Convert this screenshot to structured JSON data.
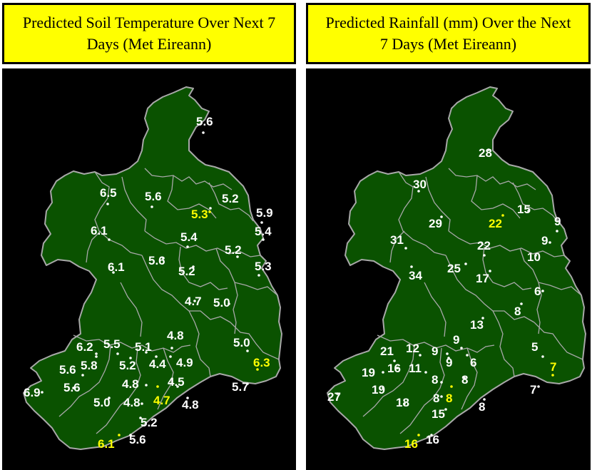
{
  "colors": {
    "header_bg": "#ffff00",
    "map_bg": "#000000",
    "land": "#0a5200",
    "border": "#a8a8a8",
    "label_default": "#ffffff",
    "label_highlight": "#ffff00"
  },
  "panels": [
    {
      "title": "Predicted Soil Temperature Over Next 7 Days (Met Eireann)",
      "points": [
        {
          "value": "5.6",
          "color": "white"
        },
        {
          "value": "6.5",
          "color": "white"
        },
        {
          "value": "5.6",
          "color": "white"
        },
        {
          "value": "5.2",
          "color": "white"
        },
        {
          "value": "5.3",
          "color": "yellow"
        },
        {
          "value": "5.9",
          "color": "white"
        },
        {
          "value": "6.1",
          "color": "white"
        },
        {
          "value": "5.4",
          "color": "white"
        },
        {
          "value": "5.4",
          "color": "white"
        },
        {
          "value": "5.2",
          "color": "white"
        },
        {
          "value": "6.1",
          "color": "white"
        },
        {
          "value": "5.6",
          "color": "white"
        },
        {
          "value": "5.2",
          "color": "white"
        },
        {
          "value": "5.3",
          "color": "white"
        },
        {
          "value": "4.7",
          "color": "white"
        },
        {
          "value": "5.0",
          "color": "white"
        },
        {
          "value": "4.8",
          "color": "white"
        },
        {
          "value": "6.2",
          "color": "white"
        },
        {
          "value": "5.5",
          "color": "white"
        },
        {
          "value": "5.1",
          "color": "white"
        },
        {
          "value": "5.0",
          "color": "white"
        },
        {
          "value": "4.9",
          "color": "white"
        },
        {
          "value": "5.8",
          "color": "white"
        },
        {
          "value": "5.2",
          "color": "white"
        },
        {
          "value": "4.4",
          "color": "white"
        },
        {
          "value": "6.3",
          "color": "yellow"
        },
        {
          "value": "5.6",
          "color": "white"
        },
        {
          "value": "4.5",
          "color": "white"
        },
        {
          "value": "4.8",
          "color": "white"
        },
        {
          "value": "5.6",
          "color": "white"
        },
        {
          "value": "5.7",
          "color": "white"
        },
        {
          "value": "6.9",
          "color": "white"
        },
        {
          "value": "4.7",
          "color": "yellow"
        },
        {
          "value": "5.0",
          "color": "white"
        },
        {
          "value": "4.8",
          "color": "white"
        },
        {
          "value": "4.8",
          "color": "white"
        },
        {
          "value": "5.2",
          "color": "white"
        },
        {
          "value": "6.1",
          "color": "yellow"
        },
        {
          "value": "5.6",
          "color": "white"
        }
      ]
    },
    {
      "title": "Predicted Rainfall (mm) Over the Next 7 Days (Met Eireann)",
      "points": [
        {
          "value": "28",
          "color": "white"
        },
        {
          "value": "30",
          "color": "white"
        },
        {
          "value": "15",
          "color": "white"
        },
        {
          "value": "9",
          "color": "white"
        },
        {
          "value": "29",
          "color": "white"
        },
        {
          "value": "22",
          "color": "yellow"
        },
        {
          "value": "31",
          "color": "white"
        },
        {
          "value": "9",
          "color": "white"
        },
        {
          "value": "22",
          "color": "white"
        },
        {
          "value": "10",
          "color": "white"
        },
        {
          "value": "34",
          "color": "white"
        },
        {
          "value": "25",
          "color": "white"
        },
        {
          "value": "17",
          "color": "white"
        },
        {
          "value": "6",
          "color": "white"
        },
        {
          "value": "8",
          "color": "white"
        },
        {
          "value": "13",
          "color": "white"
        },
        {
          "value": "9",
          "color": "white"
        },
        {
          "value": "21",
          "color": "white"
        },
        {
          "value": "12",
          "color": "white"
        },
        {
          "value": "9",
          "color": "white"
        },
        {
          "value": "9",
          "color": "white"
        },
        {
          "value": "6",
          "color": "white"
        },
        {
          "value": "5",
          "color": "white"
        },
        {
          "value": "16",
          "color": "white"
        },
        {
          "value": "11",
          "color": "white"
        },
        {
          "value": "19",
          "color": "white"
        },
        {
          "value": "8",
          "color": "white"
        },
        {
          "value": "8",
          "color": "white"
        },
        {
          "value": "7",
          "color": "yellow"
        },
        {
          "value": "19",
          "color": "white"
        },
        {
          "value": "8",
          "color": "yellow"
        },
        {
          "value": "7",
          "color": "white"
        },
        {
          "value": "27",
          "color": "white"
        },
        {
          "value": "18",
          "color": "white"
        },
        {
          "value": "8",
          "color": "white"
        },
        {
          "value": "8",
          "color": "white"
        },
        {
          "value": "15",
          "color": "white"
        },
        {
          "value": "16",
          "color": "yellow"
        },
        {
          "value": "16",
          "color": "white"
        }
      ]
    }
  ]
}
